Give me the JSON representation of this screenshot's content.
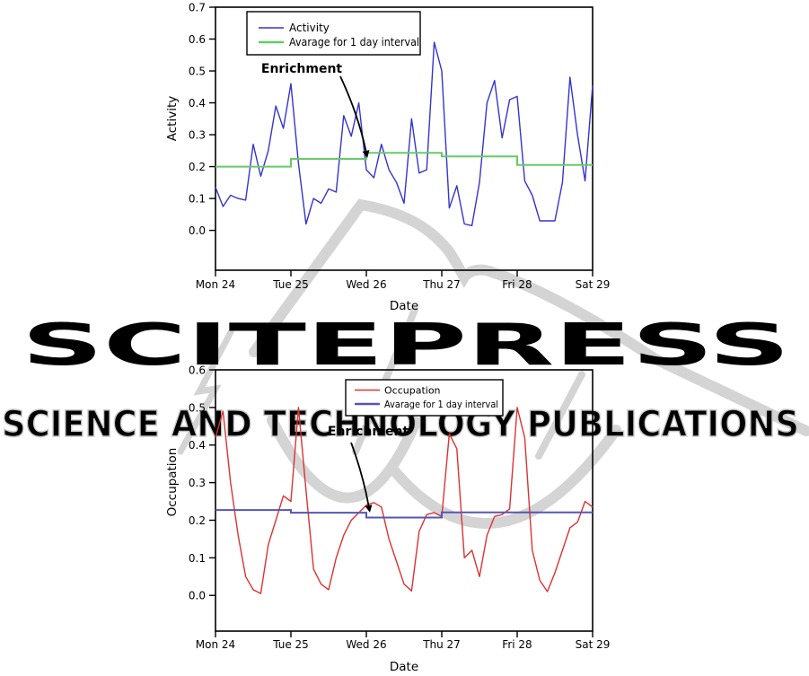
{
  "watermark": {
    "big_text": "SCITEPRESS",
    "small_text": "SCIENCE AND TECHNOLOGY PUBLICATIONS",
    "color": "#d4d4d4",
    "outline_color": "#c9c9c9"
  },
  "chart_data": [
    {
      "id": "activity",
      "type": "line",
      "title": "",
      "xlabel": "Date",
      "ylabel": "Activity",
      "categories": [
        "Mon 24",
        "Tue 25",
        "Wed 26",
        "Thu 27",
        "Fri 28",
        "Sat 29"
      ],
      "x_range_days": [
        0,
        5
      ],
      "points_per_day": 10,
      "y_ticks": [
        0.0,
        0.1,
        0.2,
        0.3,
        0.4,
        0.5,
        0.6,
        0.7
      ],
      "ylim": [
        -0.125,
        0.7
      ],
      "grid": false,
      "legend_position": "inside-top-left",
      "annotation": "Enrichment",
      "series": [
        {
          "name": "Activity",
          "style": "line",
          "color": "#3434cf",
          "values": [
            0.135,
            0.075,
            0.11,
            0.1,
            0.095,
            0.27,
            0.17,
            0.25,
            0.39,
            0.32,
            0.46,
            0.21,
            0.02,
            0.1,
            0.085,
            0.13,
            0.12,
            0.36,
            0.295,
            0.4,
            0.19,
            0.165,
            0.27,
            0.19,
            0.15,
            0.085,
            0.35,
            0.18,
            0.19,
            0.59,
            0.5,
            0.07,
            0.14,
            0.02,
            0.015,
            0.15,
            0.4,
            0.47,
            0.29,
            0.41,
            0.42,
            0.155,
            0.11,
            0.03,
            0.03,
            0.03,
            0.15,
            0.48,
            0.3,
            0.155,
            0.455
          ]
        },
        {
          "name": "Avarage for 1 day interval",
          "style": "step",
          "color": "#66cb66",
          "daily_values": [
            0.2,
            0.224,
            0.243,
            0.232,
            0.205
          ]
        }
      ]
    },
    {
      "id": "occupation",
      "type": "line",
      "title": "",
      "xlabel": "Date",
      "ylabel": "Occupation",
      "categories": [
        "Mon 24",
        "Tue 25",
        "Wed 26",
        "Thu 27",
        "Fri 28",
        "Sat 29"
      ],
      "x_range_days": [
        0,
        5
      ],
      "points_per_day": 10,
      "y_ticks": [
        0.0,
        0.1,
        0.2,
        0.3,
        0.4,
        0.5,
        0.6
      ],
      "ylim": [
        -0.095,
        0.6
      ],
      "grid": false,
      "legend_position": "inside-top-center",
      "annotation": "Enrichment",
      "series": [
        {
          "name": "Occupation",
          "style": "line",
          "color": "#dc3232",
          "values": [
            0.42,
            0.49,
            0.3,
            0.16,
            0.05,
            0.015,
            0.005,
            0.135,
            0.2,
            0.265,
            0.25,
            0.5,
            0.28,
            0.07,
            0.03,
            0.015,
            0.1,
            0.16,
            0.2,
            0.22,
            0.24,
            0.247,
            0.235,
            0.15,
            0.09,
            0.03,
            0.012,
            0.17,
            0.215,
            0.22,
            0.21,
            0.43,
            0.39,
            0.1,
            0.12,
            0.05,
            0.16,
            0.21,
            0.215,
            0.23,
            0.5,
            0.42,
            0.12,
            0.04,
            0.01,
            0.06,
            0.12,
            0.18,
            0.195,
            0.25,
            0.235
          ]
        },
        {
          "name": "Avarage for 1 day interval",
          "style": "step",
          "color": "#5656b4",
          "daily_values": [
            0.227,
            0.22,
            0.207,
            0.221,
            0.221
          ]
        }
      ]
    }
  ]
}
